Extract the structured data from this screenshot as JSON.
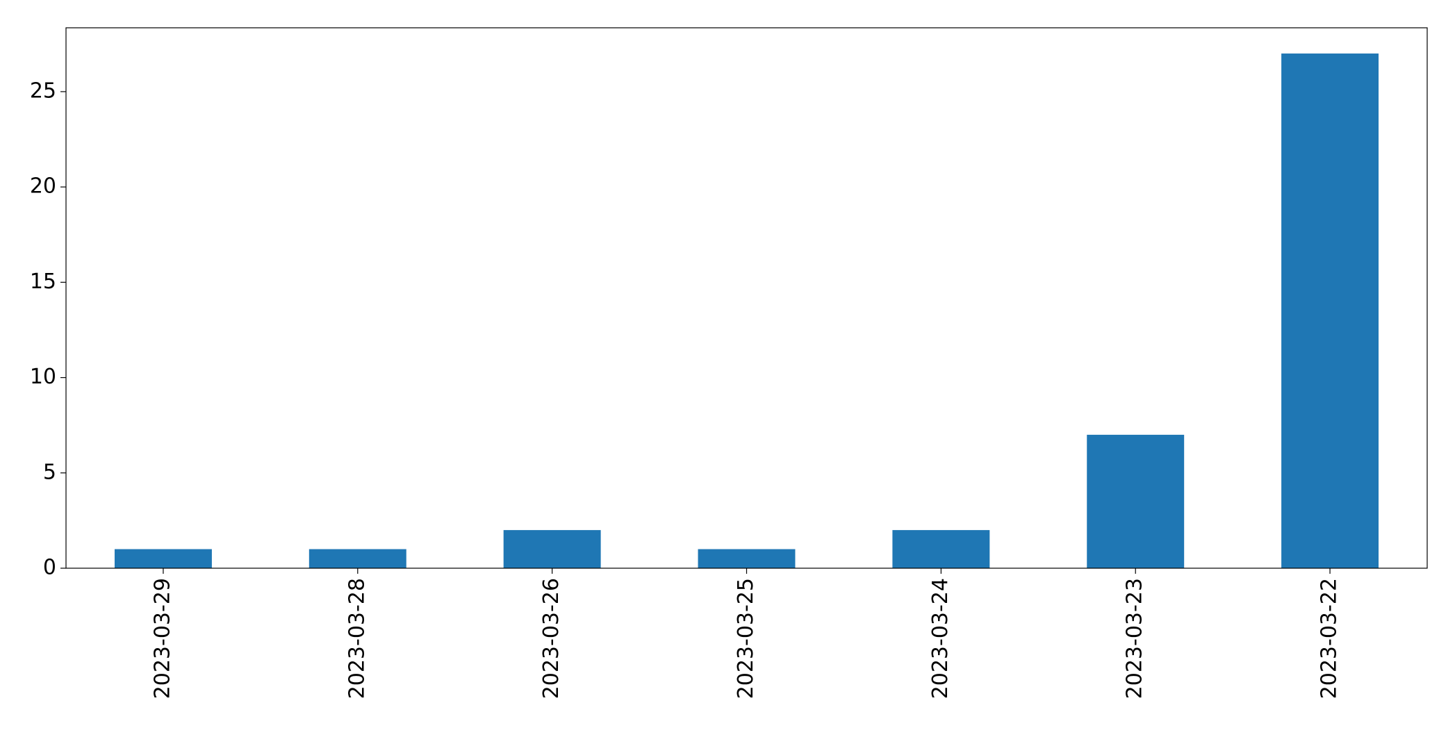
{
  "chart_data": {
    "type": "bar",
    "categories": [
      "2023-03-29",
      "2023-03-28",
      "2023-03-26",
      "2023-03-25",
      "2023-03-24",
      "2023-03-23",
      "2023-03-22"
    ],
    "values": [
      1,
      1,
      2,
      1,
      2,
      7,
      27
    ],
    "color": "#1f77b4",
    "ylim": [
      0,
      28.35
    ],
    "yticks": [
      0,
      5,
      10,
      15,
      20,
      25
    ],
    "grid": false
  }
}
